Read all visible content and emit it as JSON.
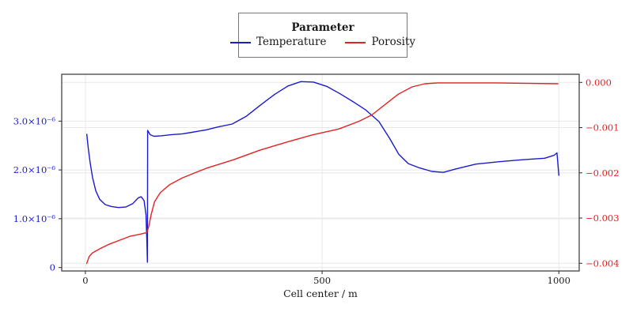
{
  "colors": {
    "temperature": "#1a1ace",
    "porosity": "#e32222",
    "grid": "#e8e8e8",
    "frame": "#4f4f4f",
    "tick": "#2a2a2a",
    "x_label_text": "#1a1a1a"
  },
  "chart_data": {
    "type": "line",
    "title": "",
    "xlabel": "Cell center / m",
    "legend": {
      "title": "Parameter",
      "position": "top-center",
      "entries": [
        {
          "label": "Temperature",
          "color": "#1a1ace"
        },
        {
          "label": "Porosity",
          "color": "#e32222"
        }
      ]
    },
    "xlim": [
      -50,
      1043
    ],
    "ylim_left": [
      -7e-08,
      3.96e-06
    ],
    "ylim_right": [
      -0.00417,
      0.00018
    ],
    "grid": true,
    "x_ticks": [
      {
        "value": 0,
        "label": "0"
      },
      {
        "value": 500,
        "label": "500"
      },
      {
        "value": 1000,
        "label": "1000"
      }
    ],
    "yleft_ticks": [
      {
        "value": 0,
        "label": "0"
      },
      {
        "value": 1e-06,
        "label": "1.0×10⁻⁶"
      },
      {
        "value": 2e-06,
        "label": "2.0×10⁻⁶"
      },
      {
        "value": 3e-06,
        "label": "3.0×10⁻⁶"
      }
    ],
    "yright_ticks": [
      {
        "value": 0,
        "label": "0.000"
      },
      {
        "value": -0.001,
        "label": "−0.001"
      },
      {
        "value": -0.002,
        "label": "−0.002"
      },
      {
        "value": -0.003,
        "label": "−0.003"
      },
      {
        "value": -0.004,
        "label": "−0.004"
      }
    ],
    "series": [
      {
        "name": "Temperature",
        "axis": "left",
        "color": "#1a1ace",
        "points": [
          [
            3,
            2.73e-06
          ],
          [
            6,
            2.45e-06
          ],
          [
            10,
            2.15e-06
          ],
          [
            15,
            1.85e-06
          ],
          [
            22,
            1.57e-06
          ],
          [
            30,
            1.4e-06
          ],
          [
            42,
            1.29e-06
          ],
          [
            55,
            1.25e-06
          ],
          [
            70,
            1.23e-06
          ],
          [
            85,
            1.24e-06
          ],
          [
            100,
            1.31e-06
          ],
          [
            112,
            1.43e-06
          ],
          [
            118,
            1.45e-06
          ],
          [
            124,
            1.37e-06
          ],
          [
            128,
            1.08e-06
          ],
          [
            130,
            5e-07
          ],
          [
            131,
            1.1e-07
          ],
          [
            131.5,
            2.81e-06
          ],
          [
            137,
            2.72e-06
          ],
          [
            145,
            2.69e-06
          ],
          [
            160,
            2.7e-06
          ],
          [
            180,
            2.72e-06
          ],
          [
            205,
            2.74e-06
          ],
          [
            225,
            2.77e-06
          ],
          [
            255,
            2.82e-06
          ],
          [
            280,
            2.88e-06
          ],
          [
            310,
            2.94e-06
          ],
          [
            340,
            3.1e-06
          ],
          [
            370,
            3.33e-06
          ],
          [
            400,
            3.55e-06
          ],
          [
            428,
            3.72e-06
          ],
          [
            455,
            3.81e-06
          ],
          [
            482,
            3.8e-06
          ],
          [
            510,
            3.71e-06
          ],
          [
            538,
            3.56e-06
          ],
          [
            565,
            3.4e-06
          ],
          [
            592,
            3.23e-06
          ],
          [
            620,
            2.99e-06
          ],
          [
            643,
            2.64e-06
          ],
          [
            662,
            2.32e-06
          ],
          [
            682,
            2.13e-06
          ],
          [
            706,
            2.04e-06
          ],
          [
            732,
            1.97e-06
          ],
          [
            756,
            1.95e-06
          ],
          [
            782,
            2.02e-06
          ],
          [
            825,
            2.12e-06
          ],
          [
            876,
            2.17e-06
          ],
          [
            926,
            2.21e-06
          ],
          [
            970,
            2.24e-06
          ],
          [
            990,
            2.3e-06
          ],
          [
            996,
            2.35e-06
          ],
          [
            1000,
            1.89e-06
          ]
        ]
      },
      {
        "name": "Porosity",
        "axis": "right",
        "color": "#e32222",
        "points": [
          [
            3,
            -0.004
          ],
          [
            8,
            -0.00385
          ],
          [
            15,
            -0.00377
          ],
          [
            30,
            -0.00368
          ],
          [
            50,
            -0.00358
          ],
          [
            70,
            -0.0035
          ],
          [
            95,
            -0.0034
          ],
          [
            115,
            -0.00336
          ],
          [
            130,
            -0.00332
          ],
          [
            134,
            -0.00318
          ],
          [
            139,
            -0.00292
          ],
          [
            146,
            -0.00264
          ],
          [
            158,
            -0.00244
          ],
          [
            178,
            -0.00226
          ],
          [
            205,
            -0.00211
          ],
          [
            255,
            -0.0019
          ],
          [
            313,
            -0.00171
          ],
          [
            368,
            -0.0015
          ],
          [
            425,
            -0.00132
          ],
          [
            480,
            -0.00116
          ],
          [
            535,
            -0.00103
          ],
          [
            578,
            -0.00086
          ],
          [
            605,
            -0.00072
          ],
          [
            634,
            -0.00048
          ],
          [
            661,
            -0.00026
          ],
          [
            690,
            -0.0001
          ],
          [
            717,
            -3e-05
          ],
          [
            745,
            -1e-05
          ],
          [
            800,
            -1e-05
          ],
          [
            860,
            -1e-05
          ],
          [
            925,
            -2e-05
          ],
          [
            998,
            -3e-05
          ]
        ]
      }
    ]
  }
}
